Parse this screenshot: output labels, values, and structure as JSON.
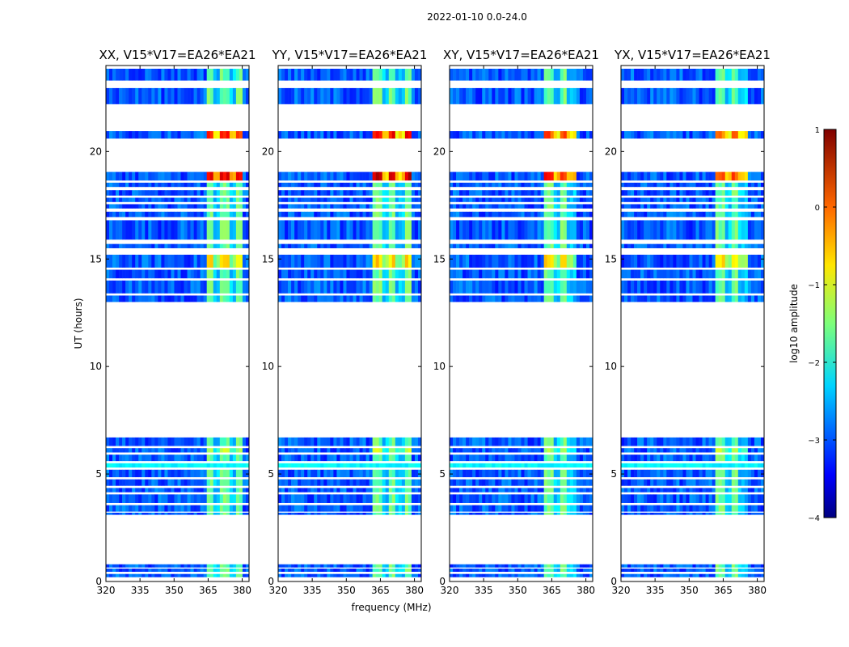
{
  "figure_title": "2022-01-10 0.0-24.0",
  "chart_data": {
    "type": "heatmap",
    "suptitle": "2022-01-10 0.0-24.0",
    "xlabel": "frequency (MHz)",
    "ylabel": "UT (hours)",
    "xlim": [
      320,
      383
    ],
    "ylim": [
      0,
      24
    ],
    "xticks": [
      "320",
      "335",
      "350",
      "365",
      "380"
    ],
    "xtick_values": [
      320,
      335,
      350,
      365,
      380
    ],
    "yticks": [
      "0",
      "5",
      "10",
      "15",
      "20"
    ],
    "ytick_values": [
      0,
      5,
      10,
      15,
      20
    ],
    "panels": [
      {
        "title": "XX, V15*V17=EA26*EA21",
        "pol": "XX",
        "signal_freq_range": [
          363.5,
          380
        ],
        "peak_log_amp": 0.4
      },
      {
        "title": "YY, V15*V17=EA26*EA21",
        "pol": "YY",
        "signal_freq_range": [
          361.5,
          378
        ],
        "peak_log_amp": 0.6
      },
      {
        "title": "XY, V15*V17=EA26*EA21",
        "pol": "XY",
        "signal_freq_range": [
          361.5,
          375
        ],
        "peak_log_amp": 0.2
      },
      {
        "title": "YX, V15*V17=EA26*EA21",
        "pol": "YX",
        "signal_freq_range": [
          361.5,
          375
        ],
        "peak_log_amp": 0.0
      }
    ],
    "data_time_ranges_hours": [
      [
        0.2,
        0.35
      ],
      [
        0.45,
        0.6
      ],
      [
        0.65,
        0.8
      ],
      [
        3.1,
        3.2
      ],
      [
        3.25,
        3.55
      ],
      [
        3.65,
        4.05
      ],
      [
        4.15,
        4.35
      ],
      [
        4.45,
        4.75
      ],
      [
        4.85,
        5.2
      ],
      [
        5.3,
        5.5
      ],
      [
        5.6,
        5.9
      ],
      [
        6.0,
        6.2
      ],
      [
        6.3,
        6.7
      ],
      [
        13.0,
        13.3
      ],
      [
        13.4,
        14.0
      ],
      [
        14.1,
        14.5
      ],
      [
        14.6,
        15.2
      ],
      [
        15.5,
        15.7
      ],
      [
        15.9,
        16.8
      ],
      [
        16.95,
        17.2
      ],
      [
        17.35,
        17.55
      ],
      [
        17.65,
        17.85
      ],
      [
        17.95,
        18.2
      ],
      [
        18.35,
        18.55
      ],
      [
        18.65,
        19.05
      ],
      [
        20.6,
        20.95
      ],
      [
        22.2,
        22.95
      ],
      [
        23.3,
        23.85
      ]
    ],
    "colorbar": {
      "label": "log10 amplitude",
      "range": [
        -4,
        1
      ],
      "ticks": [
        "1",
        "0",
        "−1",
        "−2",
        "−3",
        "−4"
      ],
      "tick_values": [
        1,
        0,
        -1,
        -2,
        -3,
        -4
      ],
      "colormap": "jet"
    }
  }
}
